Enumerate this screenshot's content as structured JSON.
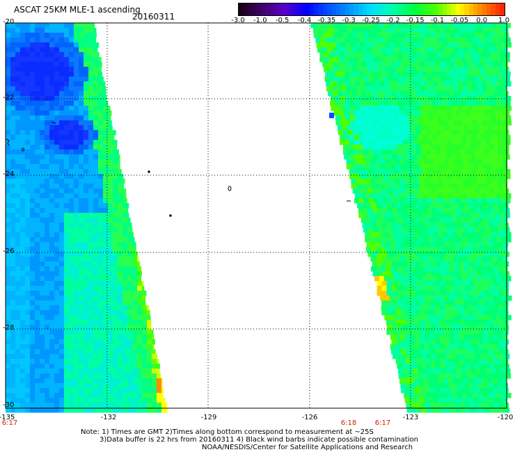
{
  "header": {
    "title": "ASCAT 25KM MLE-1 ascending",
    "date": "20160311"
  },
  "colorbar": {
    "labels": [
      "-3.0",
      "-1.0",
      "-0.5",
      "-0.4",
      "-0.35",
      "-0.3",
      "-0.25",
      "-0.2",
      "-0.15",
      "-0.1",
      "-0.05",
      "0.0",
      "1.0"
    ],
    "colors": [
      "#1a001a",
      "#40006e",
      "#5a00c8",
      "#0000ff",
      "#0050ff",
      "#0096ff",
      "#00e1ff",
      "#00ffaa",
      "#00ff3c",
      "#50ff00",
      "#ffff00",
      "#ff8c00",
      "#ff2800"
    ]
  },
  "axes": {
    "x_ticks": [
      "-135",
      "-132",
      "-129",
      "-126",
      "-123",
      "-120"
    ],
    "y_ticks": [
      "-20",
      "-22",
      "-24",
      "-26",
      "-28",
      "-30"
    ]
  },
  "times": [
    "6:17",
    "6:18",
    "6:17"
  ],
  "notes": {
    "line1": "Note: 1) Times are GMT 2)Times along bottom correspond to measurement at ~25S",
    "line2": "3)Data buffer is 22 hrs from 20160311 4) Black wind barbs indicate possible contamination",
    "line3": "NOAA/NESDIS/Center for Satellite Applications and Research"
  }
}
